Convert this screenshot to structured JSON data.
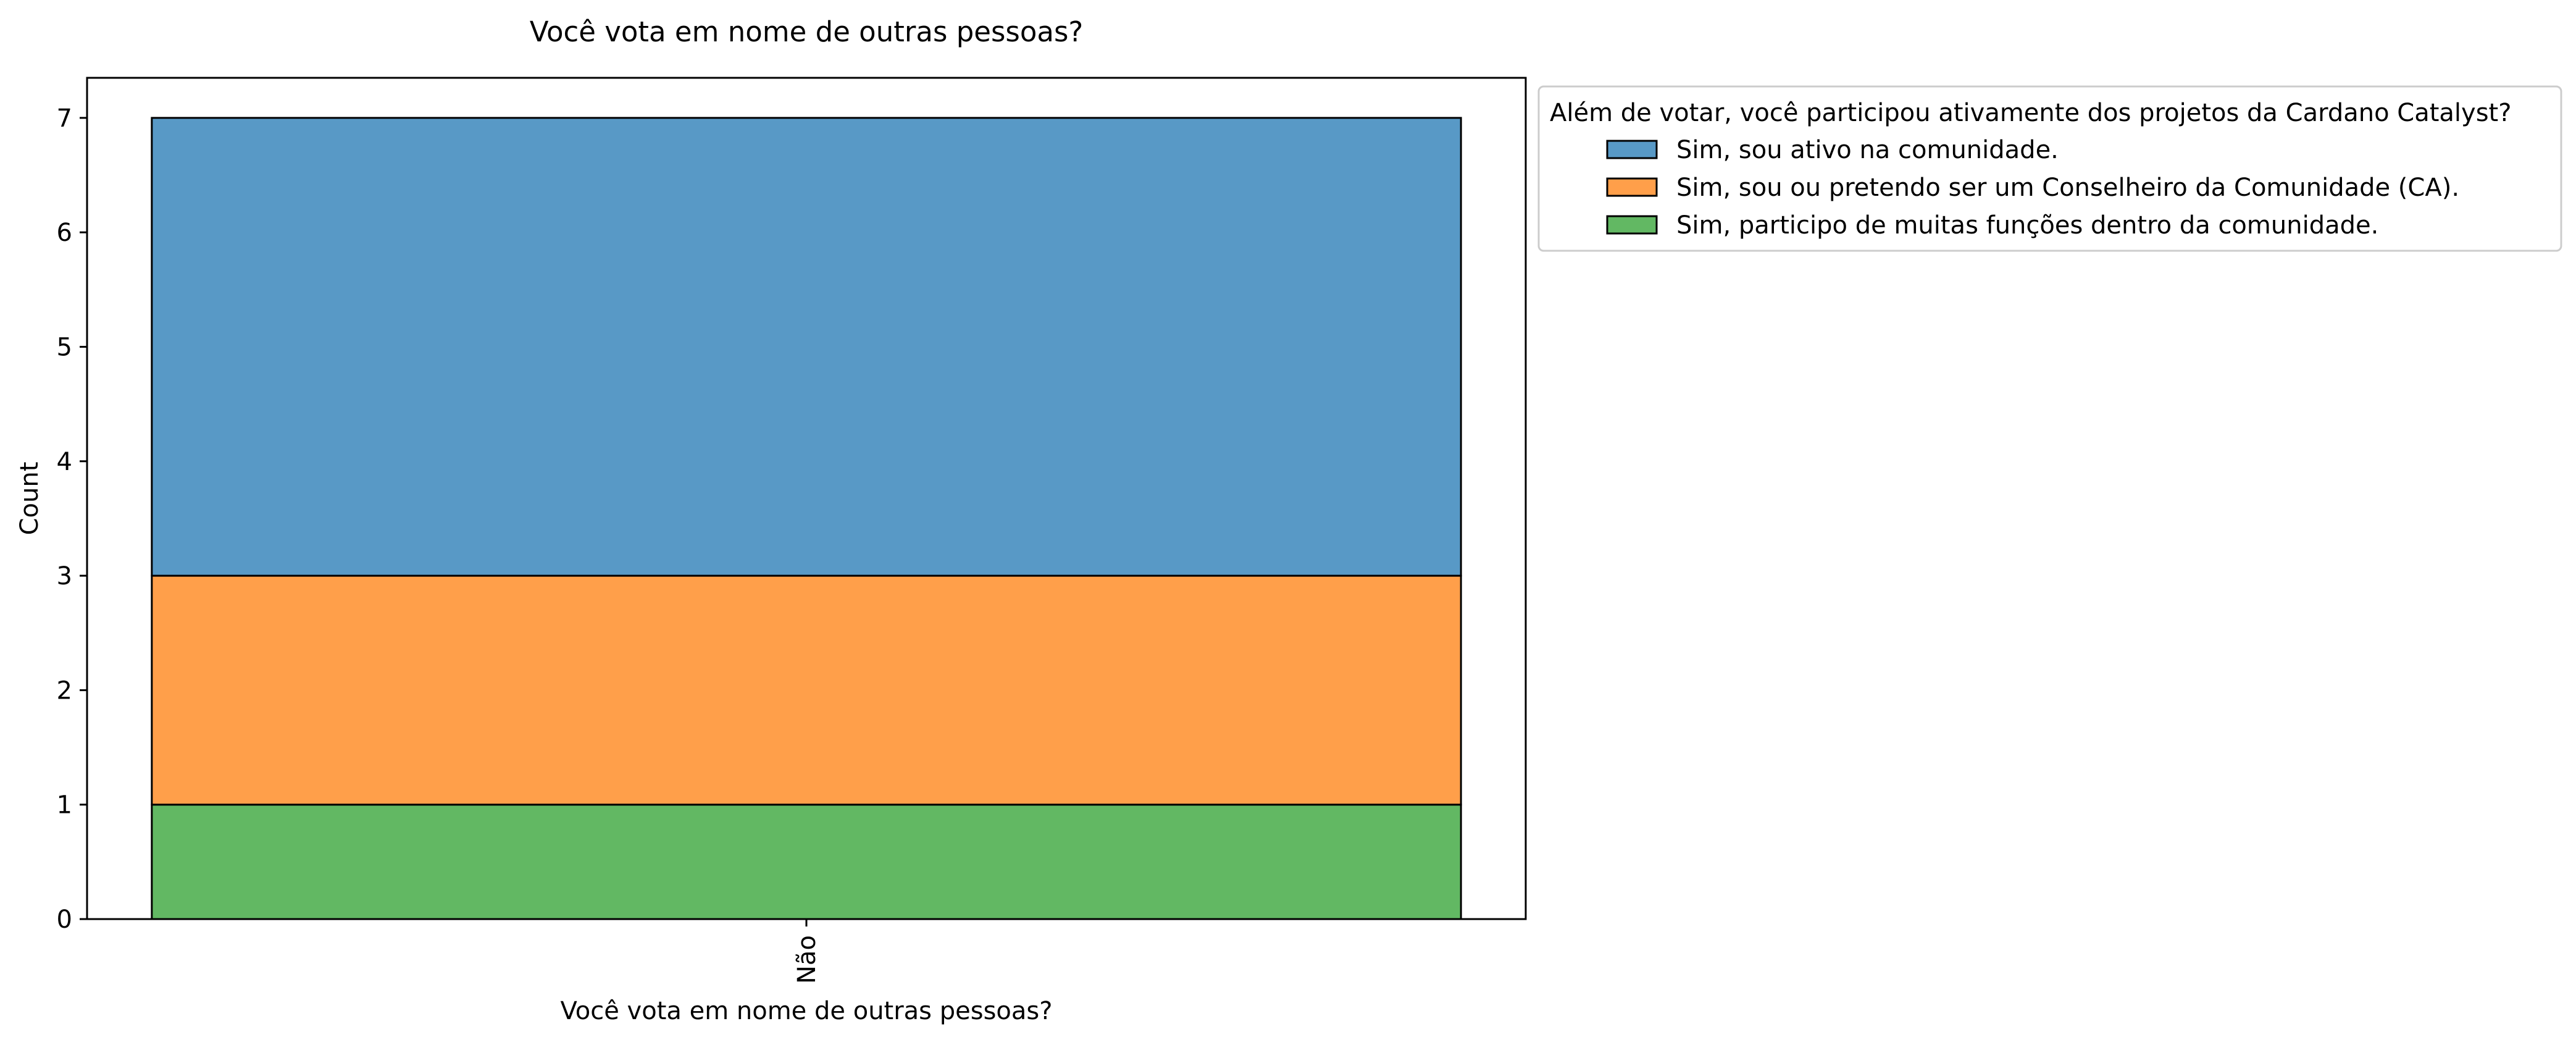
{
  "chart_data": {
    "type": "bar",
    "stacked": true,
    "title": "Você vota em nome de outras pessoas?",
    "xlabel": "Você vota em nome de outras pessoas?",
    "ylabel": "Count",
    "categories": [
      "Não"
    ],
    "ylim": [
      0,
      7.35
    ],
    "yticks": [
      0,
      1,
      2,
      3,
      4,
      5,
      6,
      7
    ],
    "grid": false,
    "legend": {
      "title": "Além de votar, você participou ativamente dos projetos da Cardano Catalyst?",
      "placement": "outside-top-right"
    },
    "series": [
      {
        "name": "Sim, sou ativo na comunidade.",
        "values": [
          4
        ],
        "color": "#5899c6"
      },
      {
        "name": "Sim, sou ou pretendo ser um Conselheiro da Comunidade (CA).",
        "values": [
          2
        ],
        "color": "#ff9f4a"
      },
      {
        "name": "Sim, participo de muitas funções dentro da comunidade.",
        "values": [
          1
        ],
        "color": "#62b863"
      }
    ],
    "stack_order": [
      2,
      1,
      0
    ]
  }
}
